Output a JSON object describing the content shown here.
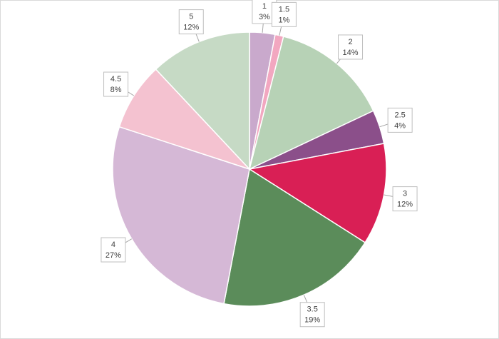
{
  "chart_data": {
    "type": "pie",
    "categories": [
      "1",
      "1.5",
      "2",
      "2.5",
      "3",
      "3.5",
      "4",
      "4.5",
      "5"
    ],
    "values": [
      3,
      1,
      14,
      4,
      12,
      19,
      27,
      8,
      12
    ],
    "value_labels": [
      "3%",
      "1%",
      "14%",
      "4%",
      "12%",
      "19%",
      "27%",
      "8%",
      "12%"
    ],
    "colors": [
      "#c9a9cc",
      "#f2a7c0",
      "#b7d2b6",
      "#8b4f8a",
      "#d91f55",
      "#5b8c5a",
      "#d5b8d6",
      "#f4c2d0",
      "#c6dac5"
    ]
  }
}
